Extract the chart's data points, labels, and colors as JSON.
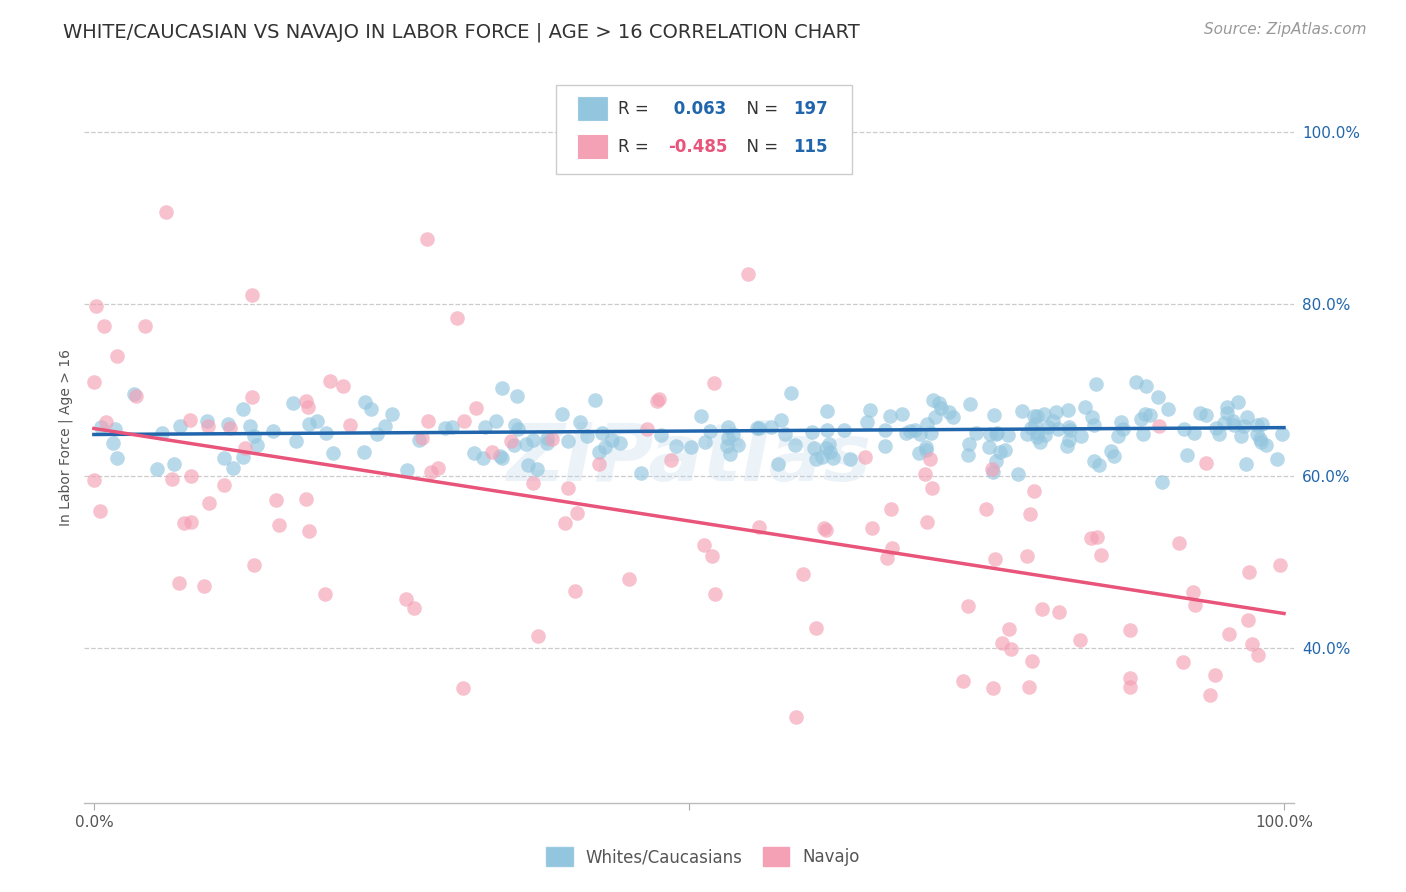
{
  "title": "WHITE/CAUCASIAN VS NAVAJO IN LABOR FORCE | AGE > 16 CORRELATION CHART",
  "source": "Source: ZipAtlas.com",
  "ylabel": "In Labor Force | Age > 16",
  "watermark": "ZIPatlas",
  "blue_R": 0.063,
  "blue_N": 197,
  "pink_R": -0.485,
  "pink_N": 115,
  "blue_color": "#92c5de",
  "pink_color": "#f4a0b5",
  "blue_line_color": "#2166ac",
  "pink_line_color": "#e8547a",
  "blue_intercept": 0.648,
  "blue_slope": 0.008,
  "pink_intercept": 0.655,
  "pink_slope": -0.215,
  "y_ticks": [
    0.4,
    0.6,
    0.8,
    1.0
  ],
  "y_tick_labels": [
    "40.0%",
    "60.0%",
    "80.0%",
    "100.0%"
  ],
  "background_color": "#ffffff",
  "legend_label_blue": "Whites/Caucasians",
  "legend_label_pink": "Navajo",
  "title_fontsize": 14,
  "axis_label_fontsize": 10,
  "tick_fontsize": 11,
  "source_fontsize": 11,
  "seed": 7
}
